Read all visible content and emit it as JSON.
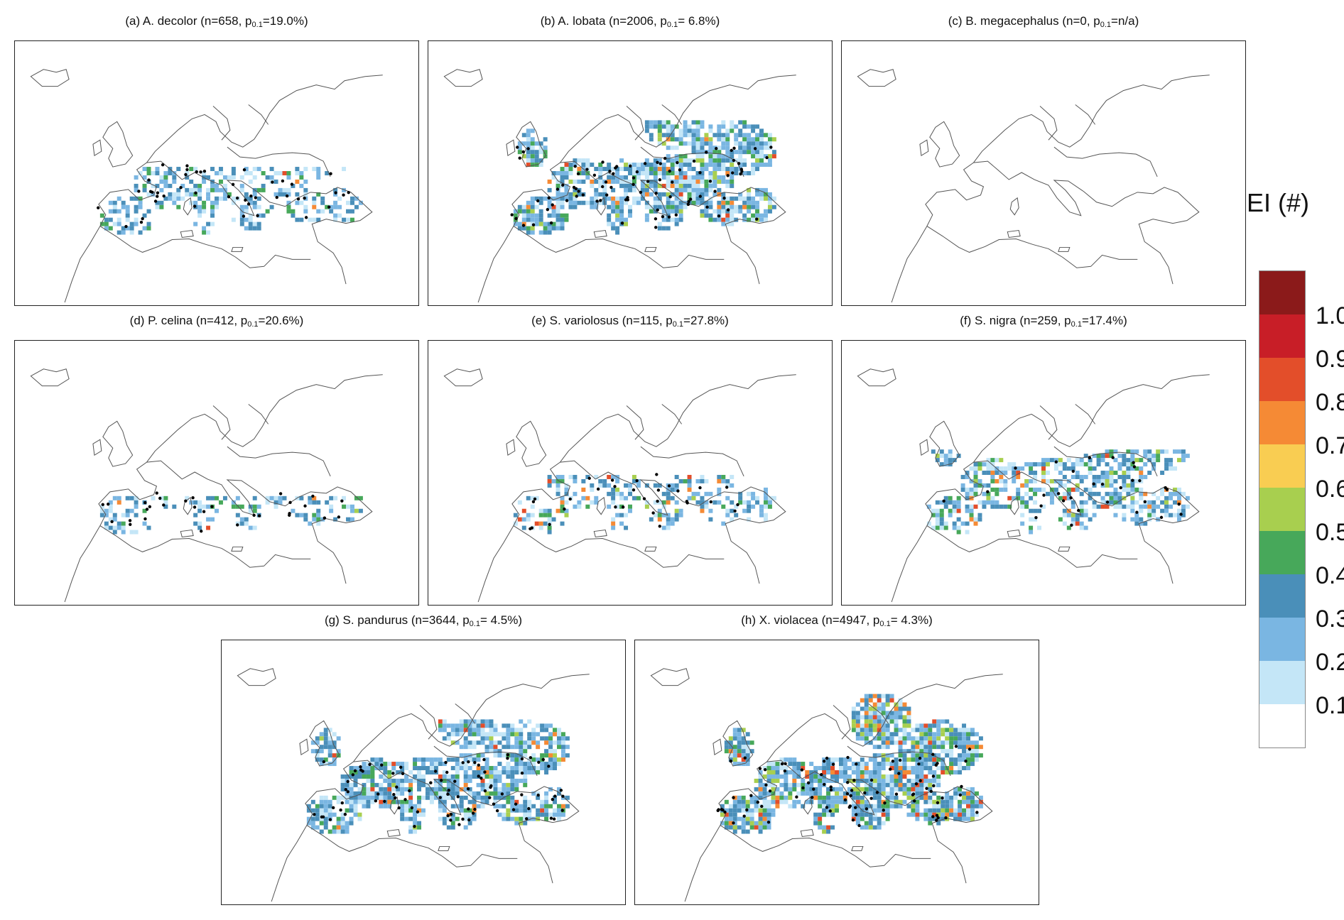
{
  "panels": [
    {
      "letter": "(a)",
      "species": "A. decolor",
      "n": "658",
      "p_sub": "0.1",
      "p_value": "19.0%",
      "coverage": "lowmed",
      "occ": "med"
    },
    {
      "letter": "(b)",
      "species": "A. lobata",
      "n": "2006",
      "p_sub": "0.1",
      "p_value": " 6.8%",
      "coverage": "wide",
      "occ": "high"
    },
    {
      "letter": "(c)",
      "species": "B. megacephalus",
      "n": "0",
      "p_sub": "0.1",
      "p_value": "n/a",
      "coverage": "none",
      "occ": "none"
    },
    {
      "letter": "(d)",
      "species": "P. celina",
      "n": "412",
      "p_sub": "0.1",
      "p_value": "20.6%",
      "coverage": "south",
      "occ": "low"
    },
    {
      "letter": "(e)",
      "species": "S. variolosus",
      "n": "115",
      "p_sub": "0.1",
      "p_value": "27.8%",
      "coverage": "patchy",
      "occ": "low"
    },
    {
      "letter": "(f)",
      "species": "S. nigra",
      "n": "259",
      "p_sub": "0.1",
      "p_value": "17.4%",
      "coverage": "medwide",
      "occ": "low"
    },
    {
      "letter": "(g)",
      "species": "S. pandurus",
      "n": "3644",
      "p_sub": "0.1",
      "p_value": " 4.5%",
      "coverage": "wide",
      "occ": "high"
    },
    {
      "letter": "(h)",
      "species": "X. violacea",
      "n": "4947",
      "p_sub": "0.1",
      "p_value": " 4.3%",
      "coverage": "verywide",
      "occ": "high"
    }
  ],
  "legend": {
    "title": "EI (#)",
    "ticks": [
      "1.0",
      "0.9",
      "0.8",
      "0.7",
      "0.6",
      "0.5",
      "0.4",
      "0.3",
      "0.2",
      "0.1"
    ],
    "colors": [
      "#8b1a1a",
      "#c81e27",
      "#e34e2a",
      "#f58a35",
      "#f9cd52",
      "#a8cf4f",
      "#47a85a",
      "#4a8fb9",
      "#7ab6e2",
      "#c4e6f7",
      "#ffffff"
    ]
  }
}
